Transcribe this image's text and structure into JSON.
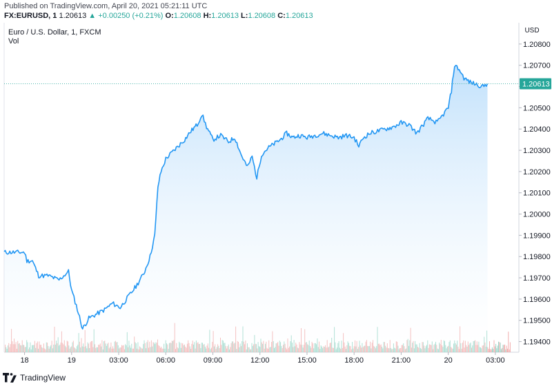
{
  "header": {
    "published": "Published on TradingView.com, April 20, 2021 05:21:11 UTC",
    "symbol": "FX:EURUSD, 1",
    "last": "1.20613",
    "change": "▲ +0.00250 (+0.21%)",
    "o_label": "O:",
    "o_value": "1.20608",
    "h_label": "H:",
    "h_value": "1.20613",
    "l_label": "L:",
    "l_value": "1.20608",
    "c_label": "C:",
    "c_value": "1.20613"
  },
  "legend": {
    "series_title": "Euro / U.S. Dollar, 1, FXCM",
    "volume_label": "Vol"
  },
  "footer": {
    "brand": "TradingView"
  },
  "colors": {
    "line": "#2196f3",
    "fill_top": "#bbdefb",
    "volume_up": "#7fcdbb",
    "volume_down": "#ef9a9a",
    "up_text": "#26a69a",
    "grid": "#f0f3fa"
  },
  "chart_data": {
    "type": "area",
    "currency_label": "USD",
    "ylim": [
      1.1935,
      1.209
    ],
    "y_ticks": [
      "1.20800",
      "1.20700",
      "1.20600",
      "1.20500",
      "1.20400",
      "1.20300",
      "1.20200",
      "1.20100",
      "1.20000",
      "1.19900",
      "1.19800",
      "1.19700",
      "1.19600",
      "1.19500",
      "1.19400"
    ],
    "y_tick_values": [
      1.208,
      1.207,
      1.206,
      1.205,
      1.204,
      1.203,
      1.202,
      1.201,
      1.2,
      1.199,
      1.198,
      1.197,
      1.196,
      1.195,
      1.194
    ],
    "x_ticks": [
      "18",
      "19",
      "03:00",
      "06:00",
      "09:00",
      "12:00",
      "15:00",
      "18:00",
      "21:00",
      "20",
      "03:00"
    ],
    "x_tick_hours": [
      0,
      3,
      6,
      9,
      12,
      15,
      18,
      21,
      24,
      27,
      30
    ],
    "x_range_hours": [
      -1.3,
      31.5
    ],
    "last_price_label": "1.20613",
    "last_price": 1.20613,
    "price_series_points": [
      [
        -1.3,
        1.1982
      ],
      [
        0.0,
        1.1982
      ],
      [
        0.15,
        1.1978
      ],
      [
        0.5,
        1.1978
      ],
      [
        0.9,
        1.1971
      ],
      [
        1.5,
        1.1971
      ],
      [
        2.2,
        1.1969
      ],
      [
        2.8,
        1.1973
      ],
      [
        3.0,
        1.1964
      ],
      [
        3.3,
        1.1957
      ],
      [
        3.7,
        1.1946
      ],
      [
        4.1,
        1.1951
      ],
      [
        4.6,
        1.1953
      ],
      [
        5.1,
        1.1955
      ],
      [
        5.6,
        1.1958
      ],
      [
        6.1,
        1.1956
      ],
      [
        6.6,
        1.1961
      ],
      [
        7.1,
        1.1966
      ],
      [
        7.6,
        1.1972
      ],
      [
        8.0,
        1.198
      ],
      [
        8.3,
        1.199
      ],
      [
        8.5,
        1.2013
      ],
      [
        8.7,
        1.202
      ],
      [
        9.0,
        1.2026
      ],
      [
        9.4,
        1.2029
      ],
      [
        9.8,
        1.2032
      ],
      [
        10.2,
        1.2035
      ],
      [
        10.6,
        1.2039
      ],
      [
        11.0,
        1.2042
      ],
      [
        11.3,
        1.2047
      ],
      [
        11.6,
        1.2041
      ],
      [
        12.0,
        1.2035
      ],
      [
        12.5,
        1.2037
      ],
      [
        13.0,
        1.2034
      ],
      [
        13.4,
        1.2036
      ],
      [
        13.8,
        1.2028
      ],
      [
        14.2,
        1.2022
      ],
      [
        14.5,
        1.2027
      ],
      [
        14.8,
        1.2017
      ],
      [
        15.1,
        1.2028
      ],
      [
        15.5,
        1.2031
      ],
      [
        15.9,
        1.2033
      ],
      [
        16.3,
        1.2035
      ],
      [
        16.7,
        1.2038
      ],
      [
        17.1,
        1.2036
      ],
      [
        17.5,
        1.2037
      ],
      [
        18.0,
        1.2036
      ],
      [
        18.5,
        1.2037
      ],
      [
        19.0,
        1.2038
      ],
      [
        19.5,
        1.2037
      ],
      [
        20.0,
        1.2036
      ],
      [
        20.5,
        1.2037
      ],
      [
        21.0,
        1.2036
      ],
      [
        21.3,
        1.2032
      ],
      [
        21.6,
        1.2036
      ],
      [
        22.0,
        1.2038
      ],
      [
        22.5,
        1.2039
      ],
      [
        23.0,
        1.204
      ],
      [
        23.5,
        1.2041
      ],
      [
        24.0,
        1.2043
      ],
      [
        24.5,
        1.2042
      ],
      [
        25.0,
        1.2038
      ],
      [
        25.3,
        1.2041
      ],
      [
        25.7,
        1.2045
      ],
      [
        26.0,
        1.2044
      ],
      [
        26.3,
        1.2043
      ],
      [
        26.7,
        1.2047
      ],
      [
        27.0,
        1.205
      ],
      [
        27.2,
        1.2058
      ],
      [
        27.4,
        1.207
      ],
      [
        27.7,
        1.2068
      ],
      [
        28.0,
        1.2064
      ],
      [
        28.4,
        1.2062
      ],
      [
        28.8,
        1.2061
      ],
      [
        29.2,
        1.206
      ],
      [
        29.5,
        1.20613
      ]
    ]
  }
}
